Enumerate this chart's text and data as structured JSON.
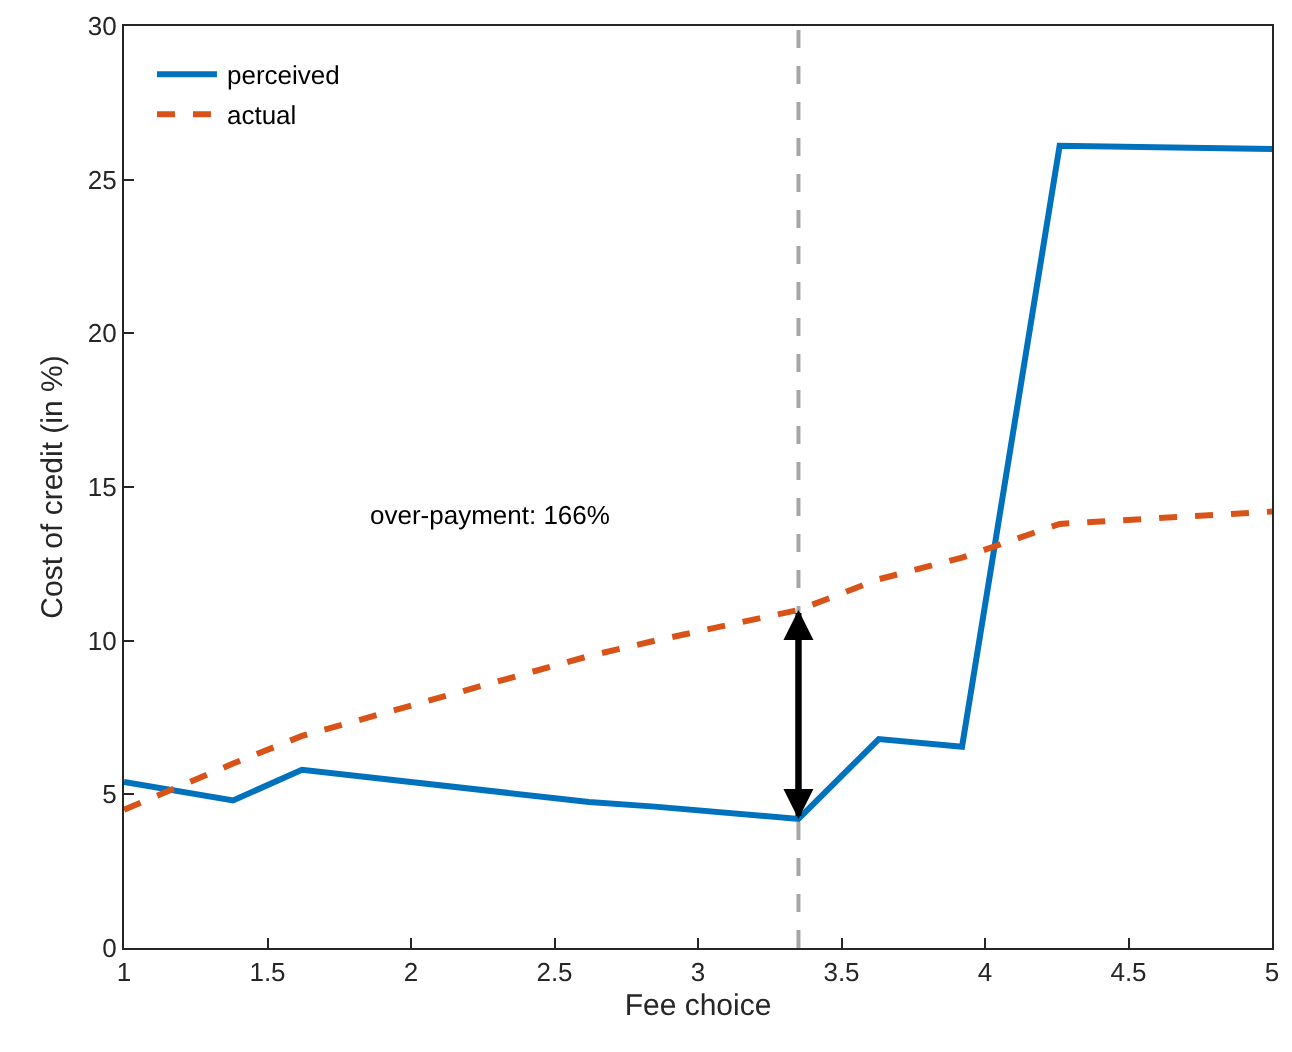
{
  "chart_data": {
    "type": "line",
    "xlabel": "Fee choice",
    "ylabel": "Cost of credit (in %)",
    "x": [
      1,
      1.38,
      1.62,
      2.62,
      2.85,
      3.35,
      3.63,
      3.92,
      4.26,
      5
    ],
    "series": [
      {
        "name": "perceived",
        "color": "#0072bd",
        "line_style": "solid",
        "values": [
          5.4,
          4.8,
          5.8,
          4.75,
          4.6,
          4.2,
          6.8,
          6.55,
          26.1,
          26.0
        ]
      },
      {
        "name": "actual",
        "color": "#d95319",
        "line_style": "dashed",
        "values": [
          4.5,
          6.0,
          6.9,
          9.5,
          10.0,
          11.0,
          12.0,
          12.7,
          13.8,
          14.2
        ]
      }
    ],
    "xlim": [
      1,
      5
    ],
    "xticks": [
      1,
      1.5,
      2,
      2.5,
      3,
      3.5,
      4,
      4.5,
      5
    ],
    "ylim": [
      0,
      30
    ],
    "yticks": [
      0,
      5,
      10,
      15,
      20,
      25,
      30
    ],
    "ref_lines": [
      {
        "axis": "x",
        "value": 3.35,
        "color": "#a6a6a6",
        "line_style": "dashed"
      }
    ],
    "annotations": [
      "over-payment: 166%"
    ],
    "legend": "top left",
    "marker": "none"
  }
}
